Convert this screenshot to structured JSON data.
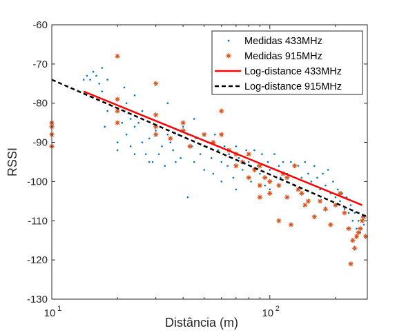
{
  "chart_data": {
    "type": "scatter",
    "title": "",
    "xlabel": "Distância (m)",
    "ylabel": "RSSI",
    "xscale": "log",
    "xlim": [
      10,
      280
    ],
    "ylim": [
      -130,
      -60
    ],
    "yticks": [
      -60,
      -70,
      -80,
      -90,
      -100,
      -110,
      -120,
      -130
    ],
    "ytick_labels": [
      "-60",
      "-70",
      "-80",
      "-90",
      "-100",
      "-110",
      "-120",
      "-130"
    ],
    "xticks": [
      {
        "base": "10",
        "exp": "1",
        "value": 10
      },
      {
        "base": "10",
        "exp": "2",
        "value": 100
      }
    ],
    "grid": false,
    "legend_position": "top-right",
    "colors": {
      "m433": "#0072BD",
      "m915": "#D95319",
      "l433": "#FF0000",
      "l915": "#000000",
      "axis": "#262626"
    },
    "series": [
      {
        "name": "Medidas 433MHz",
        "style": "dots",
        "points": [
          [
            14,
            -74
          ],
          [
            14.5,
            -73
          ],
          [
            15,
            -74
          ],
          [
            15.5,
            -72
          ],
          [
            16,
            -73
          ],
          [
            16.5,
            -75
          ],
          [
            17,
            -71
          ],
          [
            17,
            -77
          ],
          [
            18,
            -74
          ],
          [
            18,
            -82
          ],
          [
            17.5,
            -86
          ],
          [
            19,
            -80
          ],
          [
            20,
            -82
          ],
          [
            20,
            -90
          ],
          [
            21,
            -85
          ],
          [
            21.5,
            -76
          ],
          [
            22,
            -80
          ],
          [
            22,
            -88
          ],
          [
            23,
            -84
          ],
          [
            23,
            -91
          ],
          [
            24,
            -86
          ],
          [
            24,
            -93
          ],
          [
            25,
            -85
          ],
          [
            26,
            -90
          ],
          [
            27,
            -93
          ],
          [
            28,
            -89
          ],
          [
            29,
            -95
          ],
          [
            30,
            -87
          ],
          [
            31,
            -93
          ],
          [
            32,
            -91
          ],
          [
            33,
            -96
          ],
          [
            34,
            -88
          ],
          [
            35,
            -90
          ],
          [
            36,
            -92
          ],
          [
            37,
            -95
          ],
          [
            38,
            -88
          ],
          [
            39,
            -94
          ],
          [
            40,
            -86
          ],
          [
            42,
            -88
          ],
          [
            44,
            -91
          ],
          [
            45,
            -95
          ],
          [
            46,
            -89
          ],
          [
            48,
            -93
          ],
          [
            50,
            -88
          ],
          [
            50,
            -97
          ],
          [
            52,
            -90
          ],
          [
            54,
            -94
          ],
          [
            55,
            -98
          ],
          [
            56,
            -88
          ],
          [
            58,
            -92
          ],
          [
            60,
            -95
          ],
          [
            62,
            -91
          ],
          [
            64,
            -96
          ],
          [
            65,
            -93
          ],
          [
            68,
            -99
          ],
          [
            70,
            -91
          ],
          [
            72,
            -94
          ],
          [
            75,
            -97
          ],
          [
            78,
            -92
          ],
          [
            80,
            -95
          ],
          [
            82,
            -100
          ],
          [
            85,
            -92
          ],
          [
            88,
            -96
          ],
          [
            90,
            -98
          ],
          [
            92,
            -93
          ],
          [
            95,
            -101
          ],
          [
            98,
            -95
          ],
          [
            100,
            -97
          ],
          [
            105,
            -93
          ],
          [
            110,
            -96
          ],
          [
            112,
            -99
          ],
          [
            115,
            -95
          ],
          [
            120,
            -98
          ],
          [
            125,
            -95
          ],
          [
            130,
            -101
          ],
          [
            135,
            -96
          ],
          [
            140,
            -99
          ],
          [
            145,
            -95
          ],
          [
            150,
            -98
          ],
          [
            155,
            -100
          ],
          [
            160,
            -96
          ],
          [
            165,
            -99
          ],
          [
            170,
            -102
          ],
          [
            175,
            -98
          ],
          [
            180,
            -101
          ],
          [
            185,
            -97
          ],
          [
            190,
            -103
          ],
          [
            195,
            -100
          ],
          [
            200,
            -104
          ],
          [
            205,
            -102
          ],
          [
            210,
            -105
          ],
          [
            215,
            -103
          ],
          [
            220,
            -107
          ],
          [
            225,
            -104
          ],
          [
            230,
            -108
          ],
          [
            235,
            -106
          ],
          [
            240,
            -110
          ],
          [
            245,
            -108
          ],
          [
            250,
            -112
          ],
          [
            255,
            -110
          ],
          [
            260,
            -113
          ],
          [
            265,
            -109
          ],
          [
            270,
            -111
          ],
          [
            42,
            -104
          ],
          [
            28,
            -95
          ],
          [
            20,
            -92
          ],
          [
            26,
            -82
          ],
          [
            24,
            -78
          ],
          [
            60,
            -100
          ],
          [
            45,
            -84
          ],
          [
            34,
            -80
          ],
          [
            70,
            -102
          ],
          [
            120,
            -104
          ],
          [
            100,
            -102
          ]
        ]
      },
      {
        "name": "Medidas 915MHz",
        "style": "asterisk",
        "points": [
          [
            10,
            -85
          ],
          [
            10,
            -88
          ],
          [
            10,
            -91
          ],
          [
            10,
            -86
          ],
          [
            20,
            -68
          ],
          [
            20,
            -79
          ],
          [
            20,
            -82
          ],
          [
            20,
            -85
          ],
          [
            30,
            -75
          ],
          [
            30,
            -83
          ],
          [
            30,
            -86
          ],
          [
            30,
            -88
          ],
          [
            35,
            -89
          ],
          [
            40,
            -85
          ],
          [
            40,
            -87
          ],
          [
            43,
            -91
          ],
          [
            50,
            -88
          ],
          [
            55,
            -90
          ],
          [
            60,
            -82
          ],
          [
            60,
            -88
          ],
          [
            65,
            -92
          ],
          [
            70,
            -93
          ],
          [
            70,
            -96
          ],
          [
            75,
            -95
          ],
          [
            80,
            -93
          ],
          [
            80,
            -99
          ],
          [
            85,
            -97
          ],
          [
            90,
            -96
          ],
          [
            90,
            -101
          ],
          [
            90,
            -104
          ],
          [
            95,
            -99
          ],
          [
            100,
            -100
          ],
          [
            100,
            -103
          ],
          [
            110,
            -101
          ],
          [
            110,
            -110
          ],
          [
            115,
            -98
          ],
          [
            120,
            -99
          ],
          [
            120,
            -104
          ],
          [
            125,
            -111
          ],
          [
            130,
            -96
          ],
          [
            135,
            -102
          ],
          [
            140,
            -103
          ],
          [
            145,
            -106
          ],
          [
            150,
            -105
          ],
          [
            160,
            -109
          ],
          [
            170,
            -105
          ],
          [
            180,
            -107
          ],
          [
            190,
            -111
          ],
          [
            200,
            -106
          ],
          [
            210,
            -103
          ],
          [
            220,
            -108
          ],
          [
            230,
            -112
          ],
          [
            235,
            -121
          ],
          [
            240,
            -115
          ],
          [
            245,
            -117
          ],
          [
            250,
            -114
          ],
          [
            255,
            -113
          ],
          [
            260,
            -112
          ],
          [
            265,
            -110
          ],
          [
            270,
            -109
          ],
          [
            275,
            -114
          ]
        ]
      },
      {
        "name": "Log-distance 433MHz",
        "style": "line",
        "x": [
          14,
          265
        ],
        "y": [
          -77,
          -106
        ]
      },
      {
        "name": "Log-distance 915MHz",
        "style": "dashed",
        "x": [
          10,
          280
        ],
        "y": [
          -74,
          -109
        ]
      }
    ]
  }
}
